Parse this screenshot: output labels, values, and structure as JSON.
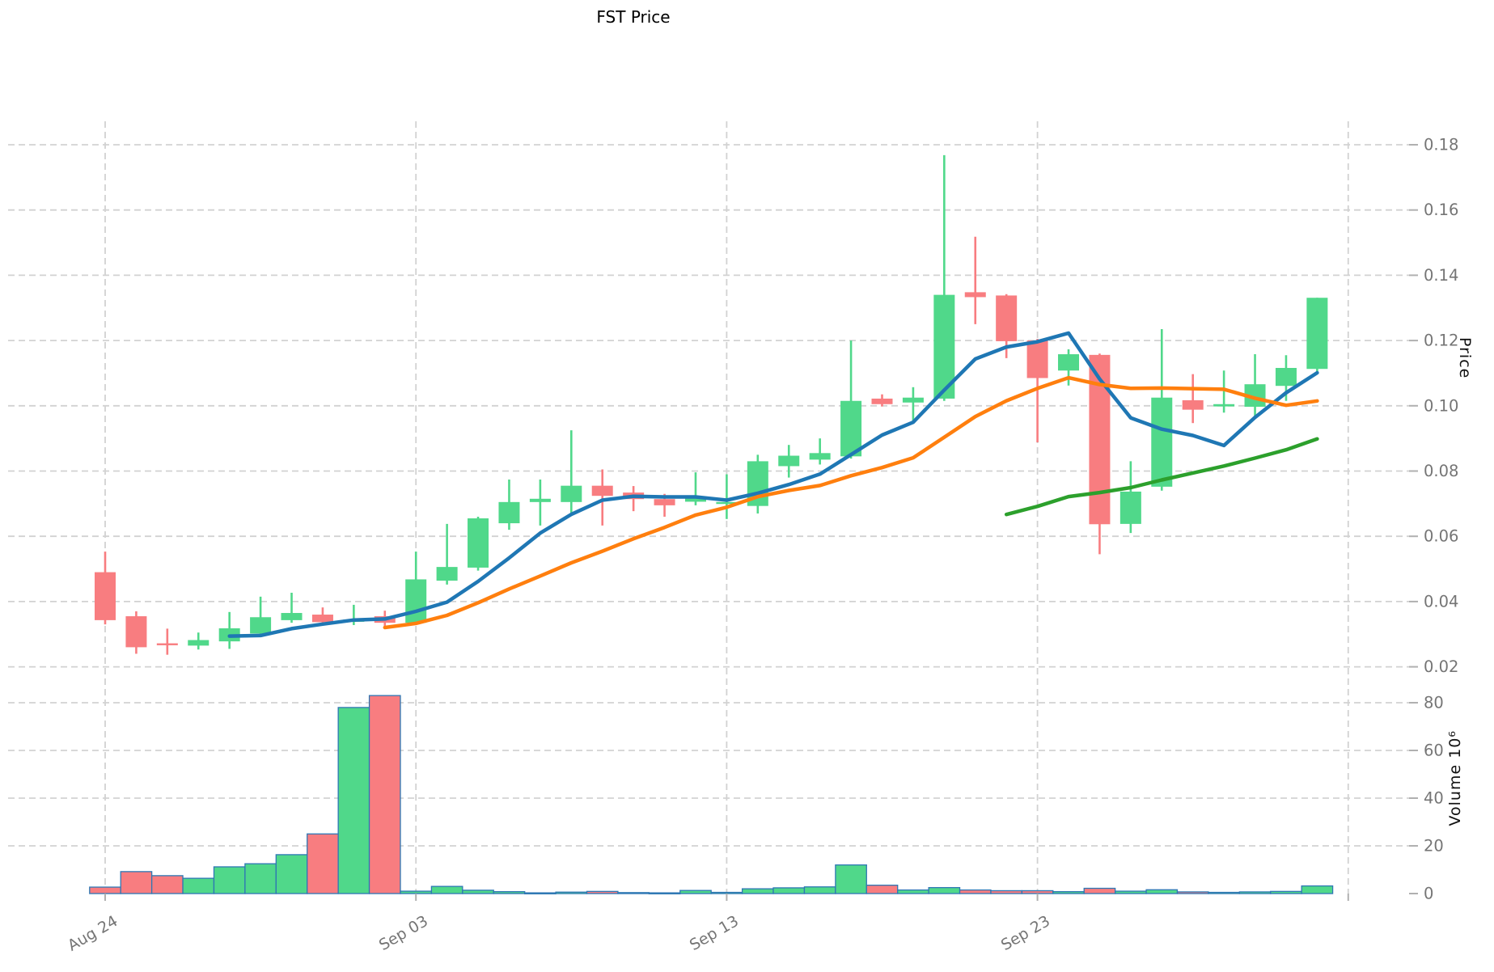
{
  "title": "FST Price",
  "axes": {
    "price": {
      "label": "Price",
      "tick_labels": [
        "0.18",
        "0.16",
        "0.14",
        "0.12",
        "0.10",
        "0.08",
        "0.06",
        "0.04",
        "0.02"
      ]
    },
    "volume": {
      "label": "Volume  10⁶",
      "tick_labels": [
        "80",
        "60",
        "40",
        "20",
        "0"
      ]
    },
    "x": {
      "tick_labels": [
        {
          "text": "Aug 24",
          "day_index": 0
        },
        {
          "text": "Sep 03",
          "day_index": 10
        },
        {
          "text": "Sep 13",
          "day_index": 20
        },
        {
          "text": "Sep 23",
          "day_index": 30
        }
      ],
      "gridline_day_indices": [
        0,
        10,
        20,
        30,
        40
      ]
    }
  },
  "colors": {
    "up": "#50d88a",
    "down": "#f87d80",
    "volume_edge": "#2e77b4",
    "ma5": "#1f77b4",
    "ma10": "#ff7f0e",
    "ma30": "#2ca02c",
    "grid": "#d2d2d2",
    "tick_text": "#757575",
    "tick_mark": "#b0b0b0"
  },
  "chart_data": {
    "type": "candlestick",
    "symbol": "FST",
    "ylabel": "Price",
    "ylabel2": "Volume  10⁶",
    "price_range": [
      0.0145,
      0.1875
    ],
    "volume_range_millions": [
      0,
      90
    ],
    "legend_position": "none",
    "grid": true,
    "dates": [
      "Aug 24",
      "Aug 25",
      "Aug 26",
      "Aug 27",
      "Aug 28",
      "Aug 29",
      "Aug 30",
      "Aug 31",
      "Sep 01",
      "Sep 02",
      "Sep 03",
      "Sep 04",
      "Sep 05",
      "Sep 06",
      "Sep 07",
      "Sep 08",
      "Sep 09",
      "Sep 10",
      "Sep 11",
      "Sep 12",
      "Sep 13",
      "Sep 14",
      "Sep 15",
      "Sep 16",
      "Sep 17",
      "Sep 18",
      "Sep 19",
      "Sep 20",
      "Sep 21",
      "Sep 22",
      "Sep 23",
      "Sep 24",
      "Sep 25",
      "Sep 26",
      "Sep 27",
      "Sep 28",
      "Sep 29",
      "Sep 30",
      "Oct 01",
      "Oct 02"
    ],
    "ohlc": [
      [
        0.049,
        0.0553,
        0.033,
        0.0343
      ],
      [
        0.0355,
        0.037,
        0.024,
        0.026
      ],
      [
        0.0272,
        0.0317,
        0.0237,
        0.0268
      ],
      [
        0.0265,
        0.0305,
        0.0253,
        0.0282
      ],
      [
        0.0278,
        0.0368,
        0.0255,
        0.0318
      ],
      [
        0.0302,
        0.0415,
        0.0298,
        0.0352
      ],
      [
        0.0343,
        0.0427,
        0.0335,
        0.0365
      ],
      [
        0.036,
        0.0382,
        0.033,
        0.0337
      ],
      [
        0.0338,
        0.039,
        0.0328,
        0.0345
      ],
      [
        0.0355,
        0.0372,
        0.032,
        0.0335
      ],
      [
        0.0335,
        0.0553,
        0.033,
        0.0468
      ],
      [
        0.0464,
        0.0638,
        0.0452,
        0.0506
      ],
      [
        0.0504,
        0.066,
        0.0495,
        0.0655
      ],
      [
        0.064,
        0.0774,
        0.062,
        0.0705
      ],
      [
        0.0705,
        0.0774,
        0.0633,
        0.0715
      ],
      [
        0.0705,
        0.0925,
        0.0672,
        0.0755
      ],
      [
        0.0755,
        0.0805,
        0.0633,
        0.0724
      ],
      [
        0.0734,
        0.0754,
        0.0677,
        0.0714
      ],
      [
        0.0714,
        0.073,
        0.066,
        0.0695
      ],
      [
        0.0706,
        0.0796,
        0.0695,
        0.0716
      ],
      [
        0.07,
        0.079,
        0.0653,
        0.0705
      ],
      [
        0.0693,
        0.085,
        0.067,
        0.083
      ],
      [
        0.0815,
        0.088,
        0.078,
        0.0847
      ],
      [
        0.0835,
        0.09,
        0.082,
        0.0855
      ],
      [
        0.0845,
        0.12,
        0.0838,
        0.1015
      ],
      [
        0.1022,
        0.1035,
        0.0998,
        0.1005
      ],
      [
        0.101,
        0.1057,
        0.0948,
        0.1025
      ],
      [
        0.1022,
        0.1768,
        0.1015,
        0.134
      ],
      [
        0.1348,
        0.1518,
        0.125,
        0.1333
      ],
      [
        0.1338,
        0.1342,
        0.1146,
        0.1198
      ],
      [
        0.12,
        0.1205,
        0.0888,
        0.1085
      ],
      [
        0.1108,
        0.1173,
        0.1062,
        0.1158
      ],
      [
        0.1156,
        0.116,
        0.0545,
        0.0637
      ],
      [
        0.0638,
        0.083,
        0.061,
        0.0737
      ],
      [
        0.0752,
        0.1235,
        0.074,
        0.1025
      ],
      [
        0.1017,
        0.1097,
        0.0947,
        0.0988
      ],
      [
        0.0998,
        0.1108,
        0.0979,
        0.1005
      ],
      [
        0.0997,
        0.1158,
        0.096,
        0.1066
      ],
      [
        0.1061,
        0.1155,
        0.1015,
        0.1116
      ],
      [
        0.1113,
        0.1331,
        0.1106,
        0.1331
      ]
    ],
    "volume_millions": [
      2.7,
      9.2,
      7.5,
      6.4,
      11.2,
      12.5,
      16.3,
      25.0,
      78.0,
      83.0,
      1.0,
      3.0,
      1.4,
      0.8,
      0.3,
      0.6,
      0.9,
      0.4,
      0.3,
      1.3,
      0.5,
      2.0,
      2.4,
      2.8,
      12.0,
      3.5,
      1.5,
      2.5,
      1.5,
      1.2,
      1.2,
      0.8,
      2.2,
      1.0,
      1.6,
      0.7,
      0.5,
      0.7,
      0.9,
      3.2
    ],
    "moving_averages": [
      {
        "name": "MA5",
        "window": 5,
        "color_key": "ma5"
      },
      {
        "name": "MA10",
        "window": 10,
        "color_key": "ma10"
      },
      {
        "name": "MA30",
        "window": 30,
        "color_key": "ma30"
      }
    ]
  }
}
